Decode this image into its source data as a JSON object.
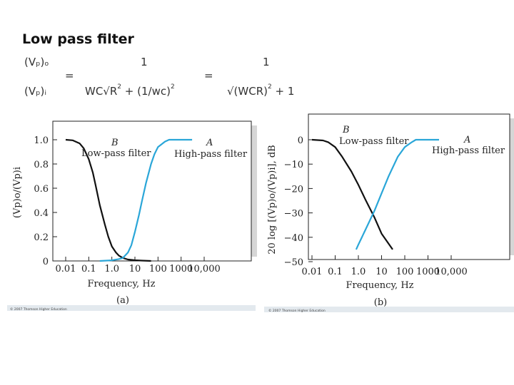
{
  "slide": {
    "title": "Low pass filter",
    "equation": {
      "lhs_num": "(Vₚ)ₒ",
      "lhs_den": "(Vₚ)ᵢ",
      "equals": "=",
      "num1": "1",
      "den1_main": "WC√R",
      "den1_exp": "2",
      "den1_mid": " + (1/wc)",
      "den1_exp2": "2",
      "num2": "1",
      "den2_main": "√(WCR)",
      "den2_exp": "2",
      "den2_tail": " + 1"
    }
  },
  "chart_data": [
    {
      "type": "line",
      "panel_label": "(a)",
      "xlabel": "Frequency, Hz",
      "ylabel": "(Vp)o/(Vp)i",
      "x_scale": "log",
      "x_ticks": [
        "0.01",
        "0.1",
        "1.0",
        "10",
        "100",
        "1000",
        "10,000"
      ],
      "x_tick_values": [
        0.01,
        0.1,
        1,
        10,
        100,
        1000,
        10000
      ],
      "y_ticks": [
        "1.0",
        "0.8",
        "0.6",
        "0.4",
        "0.2",
        "0"
      ],
      "y_tick_values": [
        1.0,
        0.8,
        0.6,
        0.4,
        0.2,
        0
      ],
      "ylim": [
        0,
        1.0
      ],
      "series": [
        {
          "name": "B",
          "label": "Low-pass filter",
          "color": "#111111",
          "points": [
            [
              0.01,
              1.0
            ],
            [
              0.02,
              0.995
            ],
            [
              0.04,
              0.97
            ],
            [
              0.06,
              0.93
            ],
            [
              0.1,
              0.84
            ],
            [
              0.15,
              0.73
            ],
            [
              0.2,
              0.62
            ],
            [
              0.3,
              0.46
            ],
            [
              0.5,
              0.3
            ],
            [
              0.7,
              0.2
            ],
            [
              1,
              0.12
            ],
            [
              1.5,
              0.07
            ],
            [
              2,
              0.045
            ],
            [
              3,
              0.025
            ],
            [
              5,
              0.012
            ],
            [
              10,
              0.006
            ],
            [
              20,
              0.003
            ],
            [
              50,
              0.0
            ]
          ]
        },
        {
          "name": "A",
          "label": "High-pass filter",
          "color": "#2aa6d8",
          "points": [
            [
              0.3,
              0.0
            ],
            [
              1,
              0.005
            ],
            [
              2,
              0.015
            ],
            [
              3,
              0.025
            ],
            [
              5,
              0.07
            ],
            [
              7,
              0.13
            ],
            [
              10,
              0.24
            ],
            [
              15,
              0.38
            ],
            [
              20,
              0.49
            ],
            [
              30,
              0.64
            ],
            [
              50,
              0.8
            ],
            [
              70,
              0.88
            ],
            [
              100,
              0.94
            ],
            [
              200,
              0.985
            ],
            [
              300,
              1.0
            ],
            [
              3000,
              1.0
            ]
          ]
        }
      ]
    },
    {
      "type": "line",
      "panel_label": "(b)",
      "xlabel": "Frequency, Hz",
      "ylabel": "20 log [(Vp)o/(Vp)i], dB",
      "x_scale": "log",
      "x_ticks": [
        "0.01",
        "0.1",
        "1.0",
        "10",
        "100",
        "1000",
        "10,000"
      ],
      "x_tick_values": [
        0.01,
        0.1,
        1,
        10,
        100,
        1000,
        10000
      ],
      "y_ticks": [
        "0",
        "−10",
        "−20",
        "−30",
        "−40",
        "−50"
      ],
      "y_tick_values": [
        0,
        -10,
        -20,
        -30,
        -40,
        -50
      ],
      "ylim": [
        -50,
        0
      ],
      "series": [
        {
          "name": "B",
          "label": "Low-pass filter",
          "color": "#111111",
          "points": [
            [
              0.01,
              0
            ],
            [
              0.03,
              -0.3
            ],
            [
              0.05,
              -1
            ],
            [
              0.1,
              -3
            ],
            [
              0.2,
              -7
            ],
            [
              0.5,
              -13
            ],
            [
              1,
              -18.5
            ],
            [
              2,
              -24.5
            ],
            [
              5,
              -32
            ],
            [
              10,
              -38.5
            ],
            [
              30,
              -45
            ]
          ]
        },
        {
          "name": "A",
          "label": "High-pass filter",
          "color": "#2aa6d8",
          "points": [
            [
              0.8,
              -45
            ],
            [
              1,
              -43
            ],
            [
              2,
              -37
            ],
            [
              5,
              -29
            ],
            [
              10,
              -22
            ],
            [
              20,
              -15
            ],
            [
              50,
              -7
            ],
            [
              100,
              -3
            ],
            [
              200,
              -1
            ],
            [
              300,
              0
            ],
            [
              3000,
              0
            ]
          ]
        }
      ]
    }
  ],
  "credits": [
    "© 2007 Thomson Higher Education",
    "© 2007 Thomson Higher Education"
  ]
}
